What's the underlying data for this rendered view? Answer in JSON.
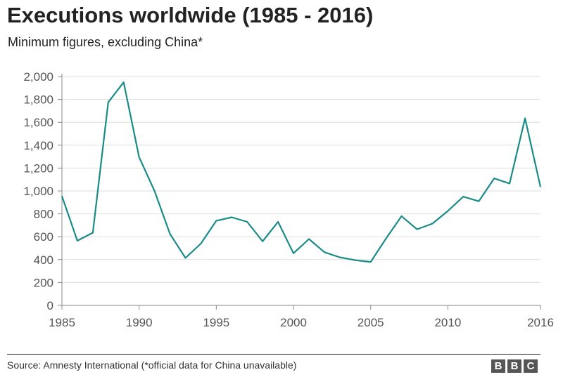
{
  "title": "Executions worldwide (1985 - 2016)",
  "subtitle": "Minimum figures, excluding China*",
  "footer": {
    "source": "Source: Amnesty International (*official data for China unavailable)",
    "logo": [
      "B",
      "B",
      "C"
    ]
  },
  "colors": {
    "line": "#1a8c88",
    "grid": "#dddddd",
    "axis": "#888888",
    "text": "#555555"
  },
  "chart_data": {
    "type": "line",
    "title": "Executions worldwide (1985 - 2016)",
    "subtitle": "Minimum figures, excluding China*",
    "xlabel": "",
    "ylabel": "",
    "xlim": [
      1985,
      2016
    ],
    "ylim": [
      0,
      2000
    ],
    "x_ticks": [
      1985,
      1990,
      1995,
      2000,
      2005,
      2010,
      2016
    ],
    "x_tick_labels": [
      "1985",
      "1990",
      "1995",
      "2000",
      "2005",
      "2010",
      "2016"
    ],
    "y_ticks": [
      0,
      200,
      400,
      600,
      800,
      1000,
      1200,
      1400,
      1600,
      1800,
      2000
    ],
    "y_tick_labels": [
      "0",
      "200",
      "400",
      "600",
      "800",
      "1,000",
      "1,200",
      "1,400",
      "1,600",
      "1,800",
      "2,000"
    ],
    "grid": true,
    "series": [
      {
        "color": "#1a8c88",
        "x": [
          1985,
          1986,
          1987,
          1988,
          1989,
          1990,
          1991,
          1992,
          1993,
          1994,
          1995,
          1996,
          1997,
          1998,
          1999,
          2000,
          2001,
          2002,
          2003,
          2004,
          2005,
          2006,
          2007,
          2008,
          2009,
          2010,
          2011,
          2012,
          2013,
          2014,
          2015,
          2016
        ],
        "values": [
          955,
          565,
          635,
          1775,
          1950,
          1295,
          1000,
          625,
          415,
          540,
          740,
          770,
          730,
          560,
          730,
          455,
          580,
          465,
          420,
          395,
          380,
          585,
          780,
          665,
          715,
          825,
          950,
          910,
          1110,
          1065,
          1635,
          1035
        ]
      }
    ]
  }
}
